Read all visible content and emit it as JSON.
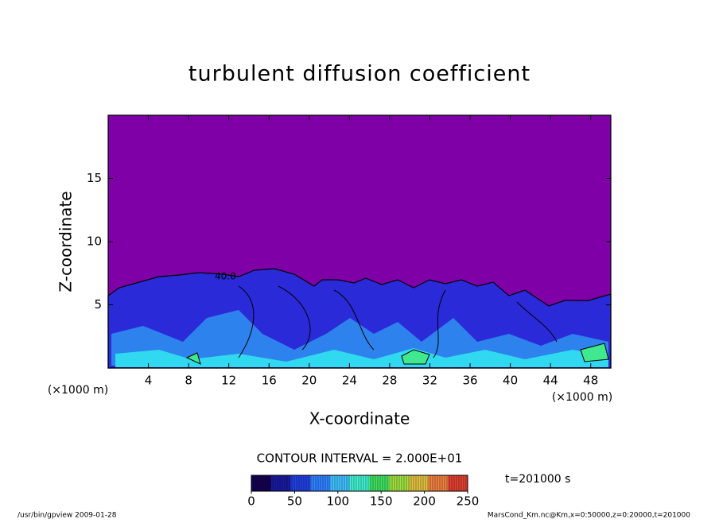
{
  "chart_data": {
    "type": "contour",
    "title": "turbulent diffusion coefficient",
    "x_label": "X-coordinate",
    "y_label": "Z-coordinate",
    "x_unit": "(×1000 m)",
    "xlim": [
      0,
      50
    ],
    "xticks": [
      4,
      8,
      12,
      16,
      20,
      24,
      28,
      32,
      36,
      40,
      44,
      48
    ],
    "ylim": [
      0,
      20
    ],
    "yticks": [
      5,
      10,
      15
    ],
    "contour_label": "40.0",
    "contour_interval": "CONTOUR INTERVAL = 2.000E+01",
    "time_label": "t=201000 s",
    "colorbar": {
      "lim": [
        0,
        250
      ],
      "ticks": [
        0,
        50,
        100,
        150,
        200,
        250
      ],
      "colors": [
        "#140050",
        "#1a1aa0",
        "#2040e0",
        "#3080ff",
        "#40c0ff",
        "#40f0d0",
        "#40e060",
        "#a0e040",
        "#e0c040",
        "#f08040",
        "#e04030"
      ]
    },
    "footer_left": "/usr/bin/gpview  2009-01-28",
    "footer_right": "MarsCond_Km.nc@Km,x=0:50000,z=0:20000,t=201000"
  }
}
